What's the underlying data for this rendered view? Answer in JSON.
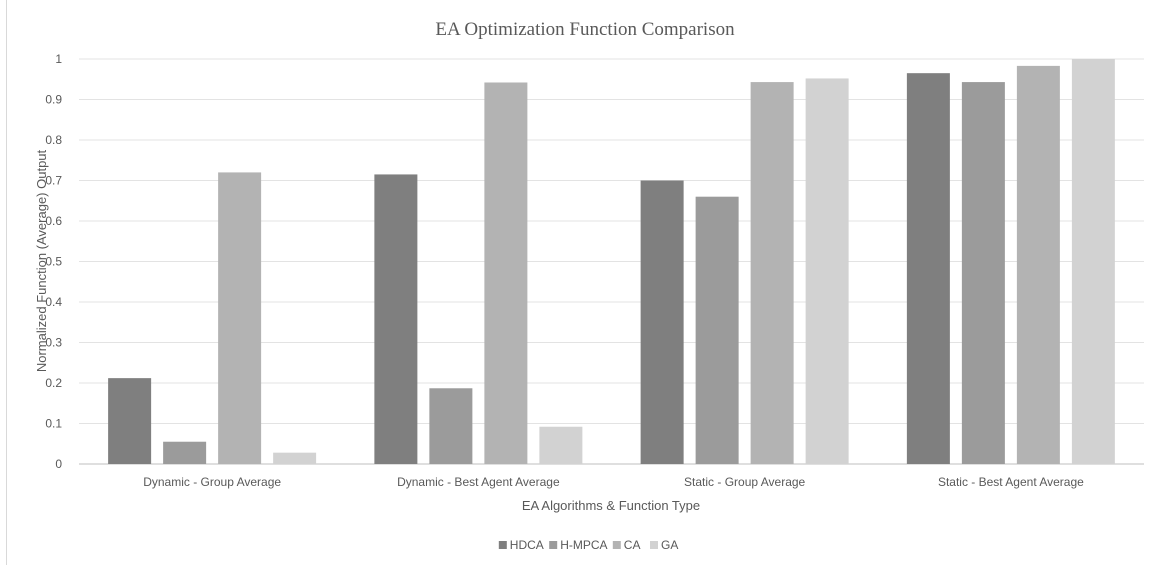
{
  "chart_data": {
    "type": "bar",
    "title": "EA Optimization Function Comparison",
    "xlabel": "EA Algorithms & Function Type",
    "ylabel": "Normalized Function (Average) Output",
    "categories": [
      "Dynamic - Group Average",
      "Dynamic - Best Agent Average",
      "Static - Group Average",
      "Static - Best Agent Average"
    ],
    "ylim": [
      0,
      1
    ],
    "yticks": [
      "0",
      "0.1",
      "0.2",
      "0.3",
      "0.4",
      "0.5",
      "0.6",
      "0.7",
      "0.8",
      "0.9",
      "1"
    ],
    "grid": true,
    "legend_position": "bottom",
    "series": [
      {
        "name": "HDCA",
        "color": "#7f7f7f",
        "values": [
          0.212,
          0.715,
          0.7,
          0.965
        ]
      },
      {
        "name": "H-MPCA",
        "color": "#9b9b9b",
        "values": [
          0.055,
          0.187,
          0.66,
          0.943
        ]
      },
      {
        "name": "CA",
        "color": "#b3b3b3",
        "values": [
          0.72,
          0.942,
          0.943,
          0.983
        ]
      },
      {
        "name": "GA",
        "color": "#d2d2d2",
        "values": [
          0.028,
          0.092,
          0.952,
          1.0
        ]
      }
    ]
  }
}
